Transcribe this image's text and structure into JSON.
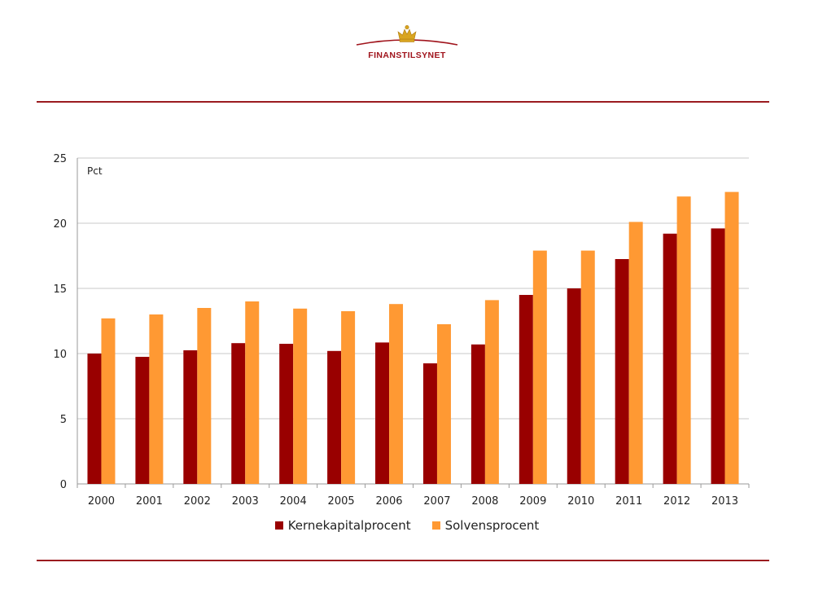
{
  "brand": {
    "name": "FINANSTILSYNET",
    "accent_color": "#9b1b1f"
  },
  "chart_data": {
    "type": "bar",
    "title": "",
    "unit_label": "Pct",
    "categories": [
      "2000",
      "2001",
      "2002",
      "2003",
      "2004",
      "2005",
      "2006",
      "2007",
      "2008",
      "2009",
      "2010",
      "2011",
      "2012",
      "2013"
    ],
    "series": [
      {
        "name": "Kernekapitalprocent",
        "color": "#990000",
        "values": [
          10.0,
          9.75,
          10.25,
          10.8,
          10.75,
          10.2,
          10.85,
          9.25,
          10.7,
          14.5,
          15.0,
          17.25,
          19.2,
          19.6
        ]
      },
      {
        "name": "Solvensprocent",
        "color": "#ff9933",
        "values": [
          12.7,
          13.0,
          13.5,
          14.0,
          13.45,
          13.25,
          13.8,
          12.25,
          14.1,
          17.9,
          17.9,
          20.1,
          22.05,
          22.4
        ]
      }
    ],
    "ylim": [
      0,
      25
    ],
    "yticks": [
      0,
      5,
      10,
      15,
      20,
      25
    ],
    "grid": true,
    "legend_position": "bottom"
  }
}
